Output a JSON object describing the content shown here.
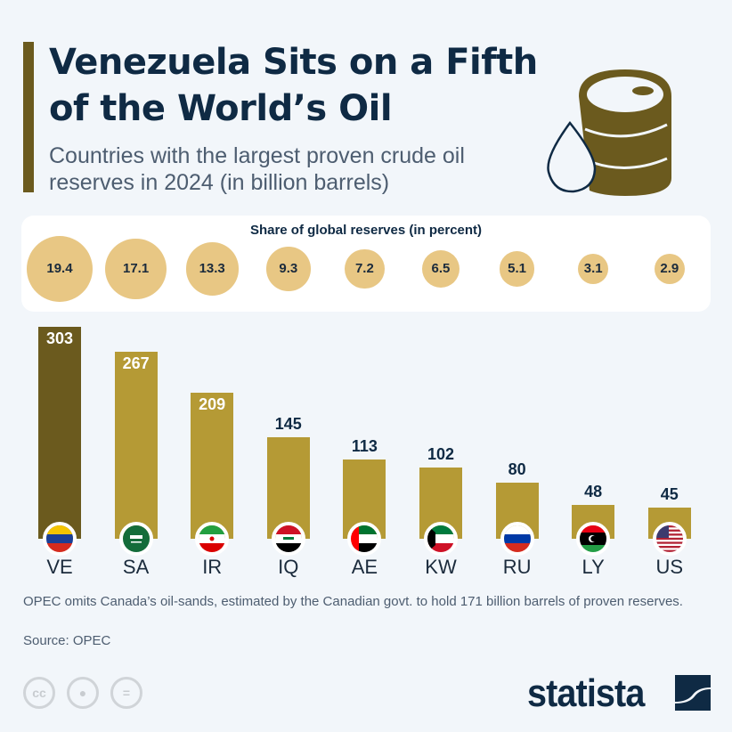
{
  "title": "Venezuela Sits on a Fifth of the World’s Oil",
  "subtitle": "Countries with the largest proven crude oil reserves in 2024 (in billion barrels)",
  "colors": {
    "highlight": "#6b5a1e",
    "bar": "#b59a35",
    "bubble": "#e8c784",
    "text": "#0f2a44"
  },
  "chart_data": {
    "type": "bar",
    "categories": [
      "VE",
      "SA",
      "IR",
      "IQ",
      "AE",
      "KW",
      "RU",
      "LY",
      "US"
    ],
    "values": [
      303,
      267,
      209,
      145,
      113,
      102,
      80,
      48,
      45
    ],
    "value_labels": [
      "303",
      "267",
      "209",
      "145",
      "113",
      "102",
      "80",
      "48",
      "45"
    ],
    "ylabel": "",
    "share_title": "Share of global reserves (in percent)",
    "share_values": [
      19.4,
      17.1,
      13.3,
      9.3,
      7.2,
      6.5,
      5.1,
      3.1,
      2.9
    ],
    "share_labels": [
      "19.4",
      "17.1",
      "13.3",
      "9.3",
      "7.2",
      "6.5",
      "5.1",
      "3.1",
      "2.9"
    ],
    "highlighted": "VE",
    "flags": [
      "venezuela-flag",
      "saudi-arabia-flag",
      "iran-flag",
      "iraq-flag",
      "uae-flag",
      "kuwait-flag",
      "russia-flag",
      "libya-flag",
      "usa-flag"
    ]
  },
  "note": "OPEC omits Canada’s oil-sands, estimated by the Canadian govt. to hold 171 billion barrels of proven reserves.",
  "source": "Source: OPEC",
  "logo": "statista",
  "icons": [
    "oil-barrel-icon",
    "oil-drop-icon",
    "cc-icon",
    "by-icon",
    "nd-icon"
  ]
}
